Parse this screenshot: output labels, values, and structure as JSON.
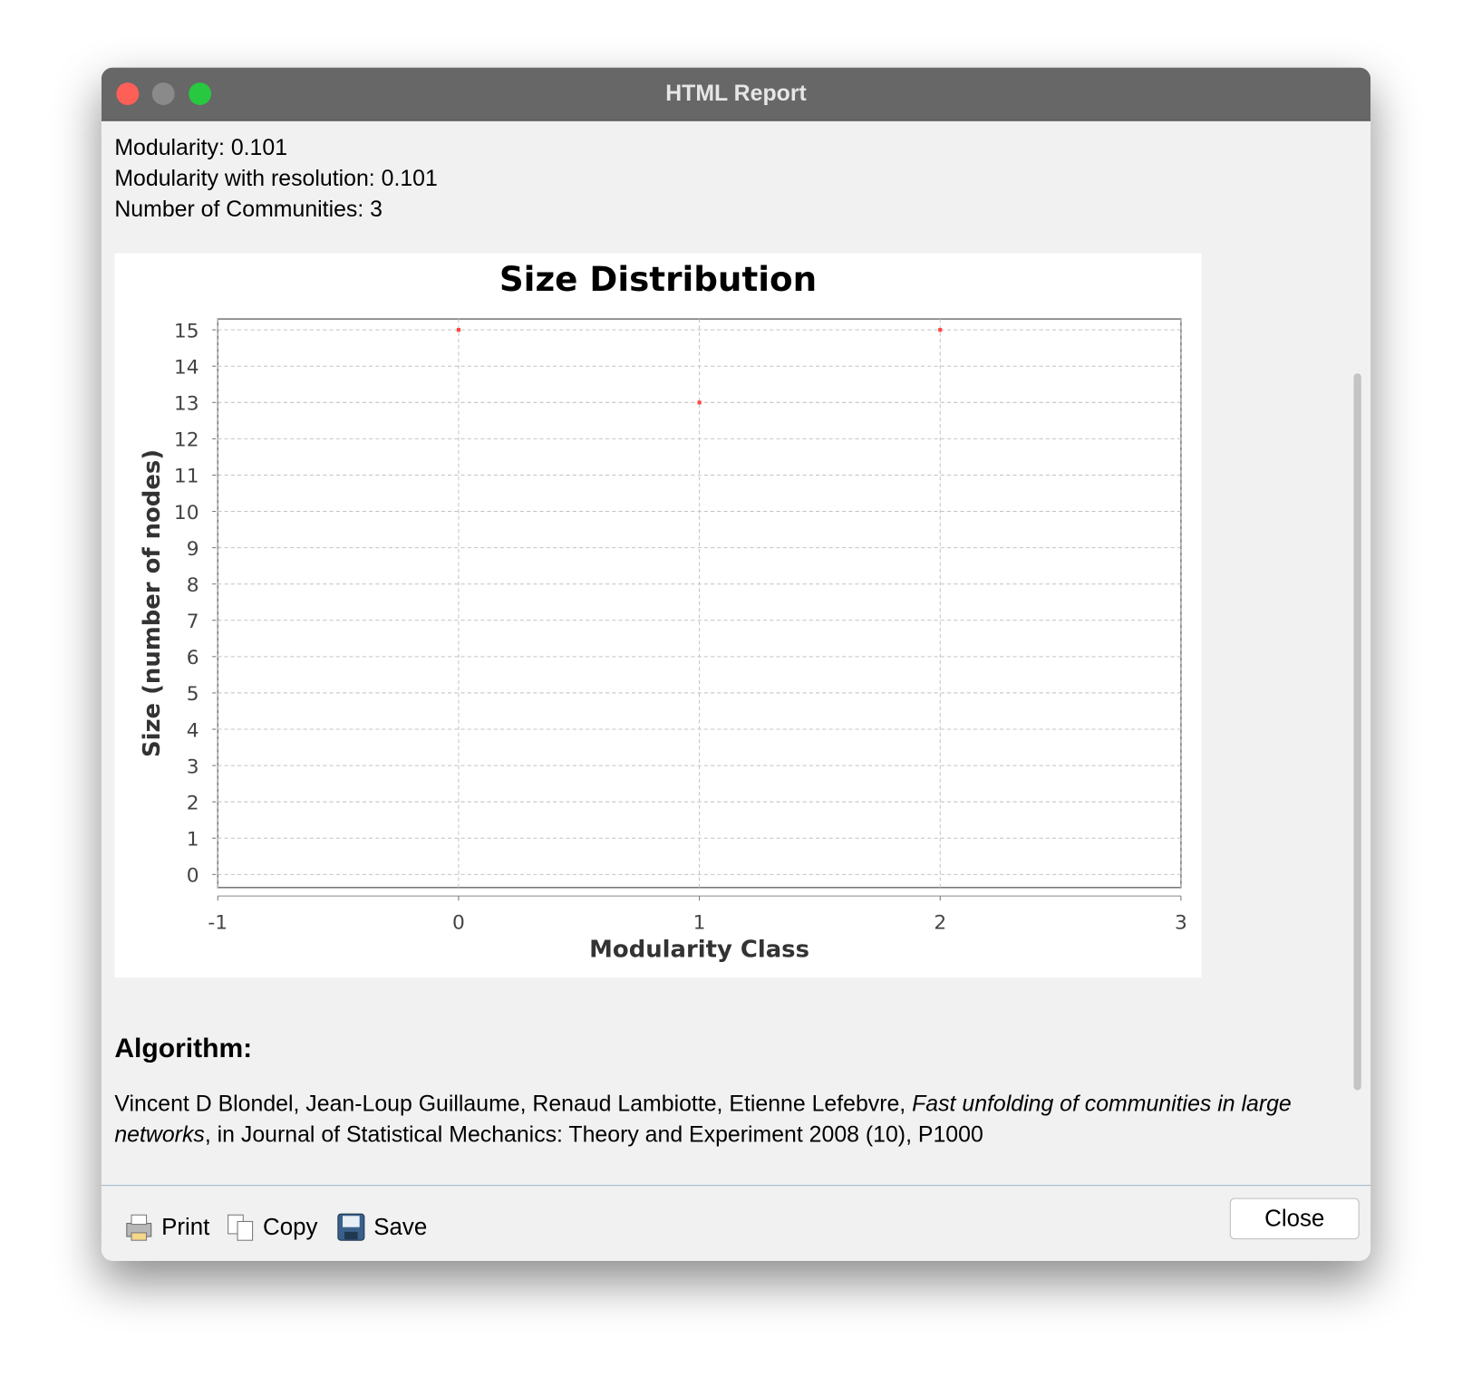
{
  "window": {
    "title": "HTML Report"
  },
  "stats": [
    "Modularity: 0.101",
    "Modularity with resolution: 0.101",
    "Number of Communities: 3"
  ],
  "chart_data": {
    "type": "scatter",
    "title": "Size Distribution",
    "x_label": "Modularity Class",
    "y_label": "Size (number of nodes)",
    "series": [
      {
        "name": "Size",
        "color": "#ff4444",
        "x": [
          0,
          1,
          2
        ],
        "values": [
          15,
          13,
          15
        ]
      }
    ],
    "xlim": [
      -1,
      3
    ],
    "xticks": [
      -1,
      0,
      1,
      2,
      3
    ],
    "ylim": [
      -0.36,
      15.3
    ],
    "yticks": [
      0,
      1,
      2,
      3,
      4,
      5,
      6,
      7,
      8,
      9,
      10,
      11,
      12,
      13,
      14,
      15
    ],
    "grid": true
  },
  "algorithm": {
    "heading": "Algorithm:",
    "authors": "Vincent D Blondel, Jean-Loup Guillaume, Renaud Lambiotte, Etienne Lefebvre, ",
    "paper": "Fast unfolding of communities in large networks",
    "source": ", in Journal of Statistical Mechanics: Theory and Experiment 2008 (10), P1000"
  },
  "toolbar": {
    "print": "Print",
    "copy": "Copy",
    "save": "Save",
    "close": "Close"
  }
}
